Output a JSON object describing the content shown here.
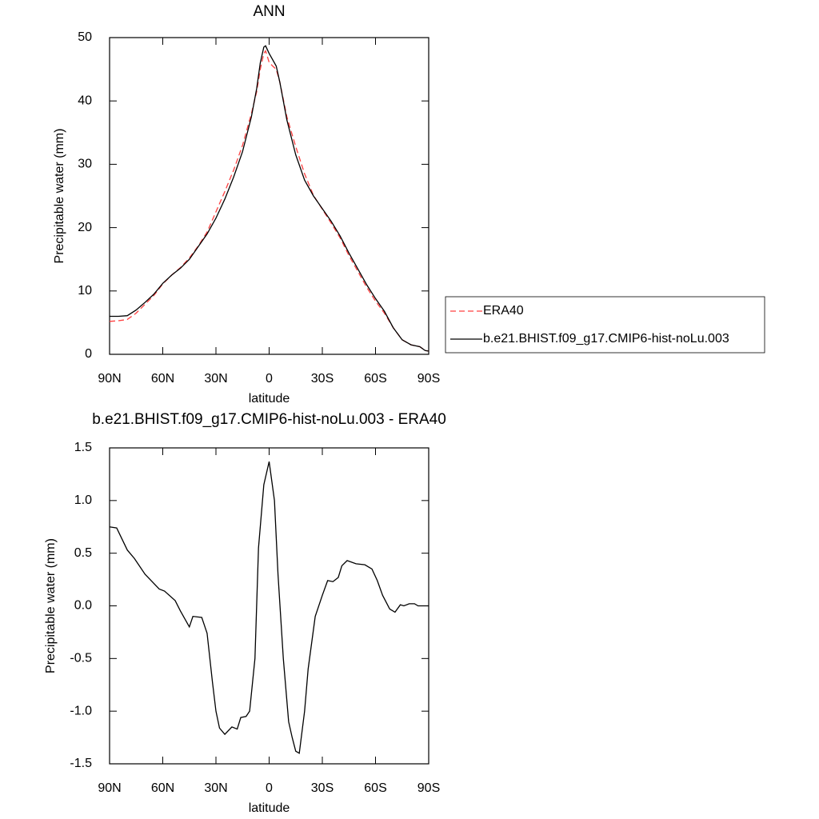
{
  "chart_data": [
    {
      "type": "line",
      "title": "ANN",
      "xlabel": "latitude",
      "ylabel": "Precipitable water (mm)",
      "x": [
        90,
        85,
        80,
        75,
        70,
        65,
        60,
        55,
        50,
        45,
        40,
        35,
        30,
        25,
        20,
        15,
        10,
        7,
        5,
        3,
        2,
        0,
        -2,
        -4,
        -6,
        -10,
        -15,
        -20,
        -25,
        -30,
        -35,
        -40,
        -45,
        -50,
        -55,
        -60,
        -65,
        -70,
        -75,
        -80,
        -85,
        -88,
        -90
      ],
      "series": [
        {
          "name": "ERA40",
          "color": "#ff4040",
          "line_style": "dashed",
          "values": [
            5.2,
            5.3,
            5.5,
            6.5,
            7.9,
            9.3,
            11.1,
            12.5,
            13.7,
            15.2,
            17.1,
            19.3,
            22.5,
            25.7,
            29.1,
            33.0,
            38.0,
            41.5,
            45.0,
            47.5,
            47.9,
            46.1,
            45.5,
            45.0,
            43.0,
            37.5,
            32.8,
            28.5,
            25.1,
            22.9,
            20.7,
            18.4,
            15.6,
            13.1,
            10.6,
            8.4,
            6.5,
            4.2,
            2.3,
            1.5,
            1.2,
            0.6,
            0.5
          ]
        },
        {
          "name": "b.e21.BHIST.f09_g17.CMIP6-hist-noLu.003",
          "color": "#000000",
          "line_style": "solid",
          "values": [
            6.0,
            6.0,
            6.1,
            7.0,
            8.2,
            9.5,
            11.2,
            12.5,
            13.6,
            15.0,
            17.0,
            19.0,
            21.5,
            24.5,
            28.0,
            32.0,
            37.5,
            42.0,
            46.0,
            48.5,
            48.7,
            47.5,
            46.5,
            45.5,
            43.0,
            37.0,
            31.5,
            27.5,
            25.0,
            23.0,
            21.0,
            18.7,
            16.0,
            13.5,
            11.0,
            8.8,
            6.8,
            4.2,
            2.3,
            1.5,
            1.2,
            0.6,
            0.5
          ]
        }
      ],
      "xlim": [
        90,
        -90
      ],
      "xticks": [
        {
          "value": 90,
          "label": "90N"
        },
        {
          "value": 60,
          "label": "60N"
        },
        {
          "value": 30,
          "label": "30N"
        },
        0,
        {
          "value": -30,
          "label": "30S"
        },
        {
          "value": -60,
          "label": "60S"
        },
        {
          "value": -90,
          "label": "90S"
        }
      ],
      "ylim": [
        0,
        50
      ],
      "yticks": [
        0,
        10,
        20,
        30,
        40,
        50
      ],
      "legend": "right"
    },
    {
      "type": "line",
      "title": "b.e21.BHIST.f09_g17.CMIP6-hist-noLu.003 - ERA40",
      "xlabel": "latitude",
      "ylabel": "Precipitable water (mm)",
      "x": [
        90,
        86,
        80,
        76,
        70,
        62,
        59,
        53,
        50,
        45,
        43,
        38,
        35,
        32,
        30,
        28,
        25,
        21,
        18,
        16,
        13,
        11,
        8,
        6,
        3,
        0,
        -3,
        -5,
        -8,
        -11,
        -13,
        -15,
        -17,
        -20,
        -22,
        -26,
        -30,
        -33,
        -36,
        -39,
        -41,
        -44,
        -49,
        -54,
        -58,
        -61,
        -64,
        -68,
        -71,
        -74,
        -76,
        -79,
        -82,
        -84,
        -90
      ],
      "series": [
        {
          "color": "#000000",
          "line_style": "solid",
          "values": [
            0.75,
            0.74,
            0.53,
            0.45,
            0.3,
            0.16,
            0.14,
            0.05,
            -0.05,
            -0.2,
            -0.1,
            -0.11,
            -0.26,
            -0.72,
            -1.0,
            -1.16,
            -1.22,
            -1.15,
            -1.17,
            -1.06,
            -1.05,
            -1.0,
            -0.5,
            0.55,
            1.15,
            1.37,
            1.0,
            0.3,
            -0.5,
            -1.1,
            -1.25,
            -1.38,
            -1.4,
            -1.0,
            -0.6,
            -0.1,
            0.1,
            0.24,
            0.23,
            0.27,
            0.38,
            0.43,
            0.4,
            0.39,
            0.35,
            0.24,
            0.1,
            -0.03,
            -0.06,
            0.01,
            0.0,
            0.02,
            0.02,
            0.0,
            0.0
          ]
        }
      ],
      "xlim": [
        90,
        -90
      ],
      "xticks": [
        {
          "value": 90,
          "label": "90N"
        },
        {
          "value": 60,
          "label": "60N"
        },
        {
          "value": 30,
          "label": "30N"
        },
        0,
        {
          "value": -30,
          "label": "30S"
        },
        {
          "value": -60,
          "label": "60S"
        },
        {
          "value": -90,
          "label": "90S"
        }
      ],
      "ylim": [
        -1.5,
        1.5
      ],
      "yticks": [
        -1.5,
        {
          "value": -1,
          "label": "-1.0"
        },
        -0.5,
        {
          "value": 0,
          "label": "0.0"
        },
        0.5,
        {
          "value": 1,
          "label": "1.0"
        },
        1.5
      ]
    }
  ]
}
